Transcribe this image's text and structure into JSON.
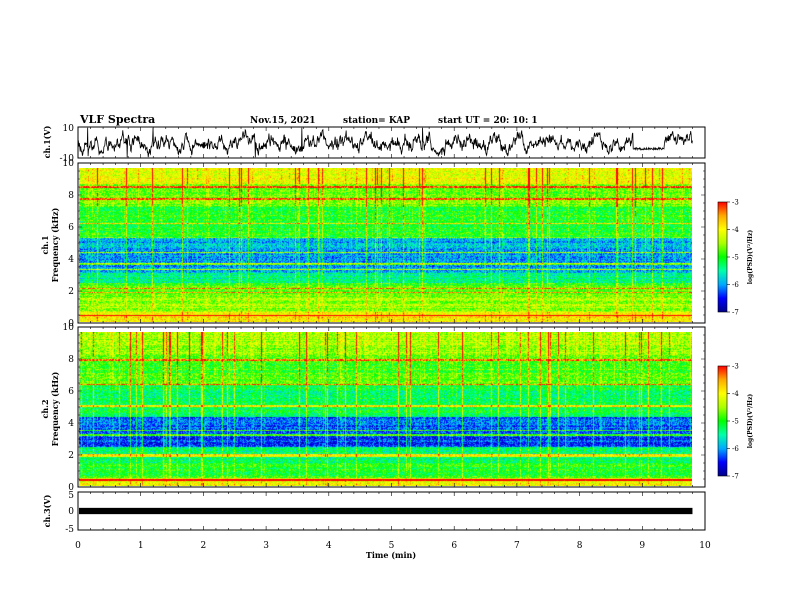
{
  "header": {
    "title": "VLF Spectra",
    "date": "Nov.15, 2021",
    "station": "station= KAP",
    "start": "start  UT =   20: 10: 1"
  },
  "chart_data": [
    {
      "type": "line",
      "name": "ch1-waveform",
      "ylabel": "ch.1(V)",
      "ylim": [
        -10,
        10
      ],
      "yticks": [
        "10",
        "-10"
      ],
      "xlim": [
        0,
        10
      ],
      "data_extent_min": 9.8,
      "baseline": 0,
      "amplitude": 4.5,
      "dip": {
        "x_start": 8.85,
        "x_end": 9.35,
        "value": -4
      }
    },
    {
      "type": "heatmap",
      "name": "ch1-spectrogram",
      "ylabel": "ch.1",
      "ylabel2": "Frequency  (kHz)",
      "ylim": [
        0,
        10
      ],
      "yticks": [
        "0",
        "2",
        "4",
        "6",
        "8",
        "10"
      ],
      "xlim": [
        0,
        10
      ],
      "data_extent_min": 9.8,
      "colorbar": {
        "range": [
          -7,
          -3
        ],
        "ticks": [
          "-3",
          "-4",
          "-5",
          "-6",
          "-7"
        ],
        "label": "log(PSD)(V²/Hz)",
        "colors": [
          "#000088",
          "#0000ff",
          "#00aaff",
          "#00ffaa",
          "#00ff00",
          "#aaff00",
          "#ffff00",
          "#ffaa00",
          "#ff0000"
        ]
      },
      "bands": [
        {
          "from": 0,
          "to": 0.6,
          "level": -3.9
        },
        {
          "from": 0.6,
          "to": 1.8,
          "level": -4.5
        },
        {
          "from": 1.8,
          "to": 2.5,
          "level": -4.8
        },
        {
          "from": 2.5,
          "to": 3.2,
          "level": -5.4
        },
        {
          "from": 3.2,
          "to": 5.5,
          "level": -5.9
        },
        {
          "from": 5.5,
          "to": 7.5,
          "level": -5.0
        },
        {
          "from": 7.5,
          "to": 9.0,
          "level": -4.6
        },
        {
          "from": 9.0,
          "to": 10.0,
          "level": -4.0
        }
      ],
      "lines_khz": [
        0.4,
        1.9,
        2.15,
        3.4,
        3.75,
        4.5,
        5.5,
        6.4,
        8.0,
        8.8
      ]
    },
    {
      "type": "heatmap",
      "name": "ch2-spectrogram",
      "ylabel": "ch.2",
      "ylabel2": "Frequency  (kHz)",
      "ylim": [
        0,
        10
      ],
      "yticks": [
        "0",
        "2",
        "4",
        "6",
        "8",
        "10"
      ],
      "xlim": [
        0,
        10
      ],
      "data_extent_min": 9.8,
      "colorbar": {
        "range": [
          -7,
          -3
        ],
        "ticks": [
          "-3",
          "-4",
          "-5",
          "-6",
          "-7"
        ],
        "label": "log(PSD)(V²/Hz)",
        "colors": [
          "#000088",
          "#0000ff",
          "#00aaff",
          "#00ffaa",
          "#00ff00",
          "#aaff00",
          "#ffff00",
          "#ffaa00",
          "#ff0000"
        ]
      },
      "bands": [
        {
          "from": 0,
          "to": 0.5,
          "level": -4.0
        },
        {
          "from": 0.5,
          "to": 1.5,
          "level": -5.0
        },
        {
          "from": 1.5,
          "to": 2.5,
          "level": -5.3
        },
        {
          "from": 2.5,
          "to": 3.2,
          "level": -6.3
        },
        {
          "from": 3.2,
          "to": 4.5,
          "level": -6.2
        },
        {
          "from": 4.5,
          "to": 6.5,
          "level": -5.2
        },
        {
          "from": 6.5,
          "to": 8.5,
          "level": -4.8
        },
        {
          "from": 8.5,
          "to": 10.0,
          "level": -4.4
        }
      ],
      "lines_khz": [
        0.35,
        1.9,
        2.0,
        3.3,
        3.6,
        5.2,
        6.6,
        8.2
      ]
    },
    {
      "type": "line",
      "name": "ch3-waveform",
      "ylabel": "ch.3(V)",
      "ylim": [
        -5,
        5
      ],
      "yticks": [
        "5",
        "0",
        "-5"
      ],
      "xlim": [
        0,
        10
      ],
      "data_extent_min": 9.8,
      "band": [
        -0.3,
        0.3
      ]
    }
  ],
  "x_axis": {
    "label": "Time  (min)",
    "ticks": [
      "0",
      "1",
      "2",
      "3",
      "4",
      "5",
      "6",
      "7",
      "8",
      "9",
      "10"
    ]
  }
}
